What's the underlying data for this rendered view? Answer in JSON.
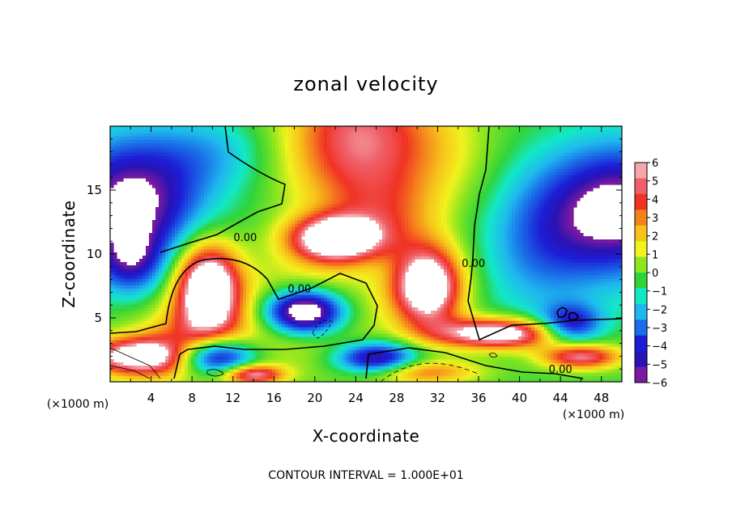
{
  "chart_data": {
    "type": "heatmap",
    "title": "zonal velocity",
    "xlabel": "X-coordinate",
    "ylabel": "Z-coordinate",
    "x_unit_note": "(×1000 m)",
    "z_unit_note": "(×1000 m)",
    "footer": "CONTOUR INTERVAL = 1.000E+01",
    "xlim": [
      0,
      50
    ],
    "ylim": [
      0,
      20
    ],
    "x_ticks": [
      4,
      8,
      12,
      16,
      20,
      24,
      28,
      32,
      36,
      40,
      44,
      48
    ],
    "x_tick_labels": [
      "4",
      "8",
      "12",
      "16",
      "20",
      "24",
      "28",
      "32",
      "36",
      "40",
      "44",
      "48"
    ],
    "y_ticks": [
      5,
      10,
      15
    ],
    "y_tick_labels": [
      "5",
      "10",
      "15"
    ],
    "colorbar": {
      "range": [
        -6,
        6
      ],
      "tick_values": [
        6,
        5,
        4,
        3,
        2,
        1,
        0,
        -1,
        -2,
        -3,
        -4,
        -5,
        -6
      ],
      "tick_labels": [
        "6",
        "5",
        "4",
        "3",
        "2",
        "1",
        "0",
        "−1",
        "−2",
        "−3",
        "−4",
        "−5",
        "−6"
      ],
      "colors": [
        "#f4a8ac",
        "#f05f68",
        "#f03224",
        "#f5811d",
        "#f7c21a",
        "#f1f21e",
        "#8ee61e",
        "#30d43a",
        "#12e8c8",
        "#1fb8ee",
        "#1a6ee8",
        "#1c1ed6",
        "#2a12b4",
        "#7a1aa0"
      ]
    },
    "contour_labels": [
      {
        "text": "0.00",
        "x": 13.2,
        "z": 11.0
      },
      {
        "text": "0.00",
        "x": 18.5,
        "z": 7.0
      },
      {
        "text": "0.00",
        "x": 35.5,
        "z": 9.0
      },
      {
        "text": "0.00",
        "x": 44.0,
        "z": 0.7
      }
    ]
  }
}
